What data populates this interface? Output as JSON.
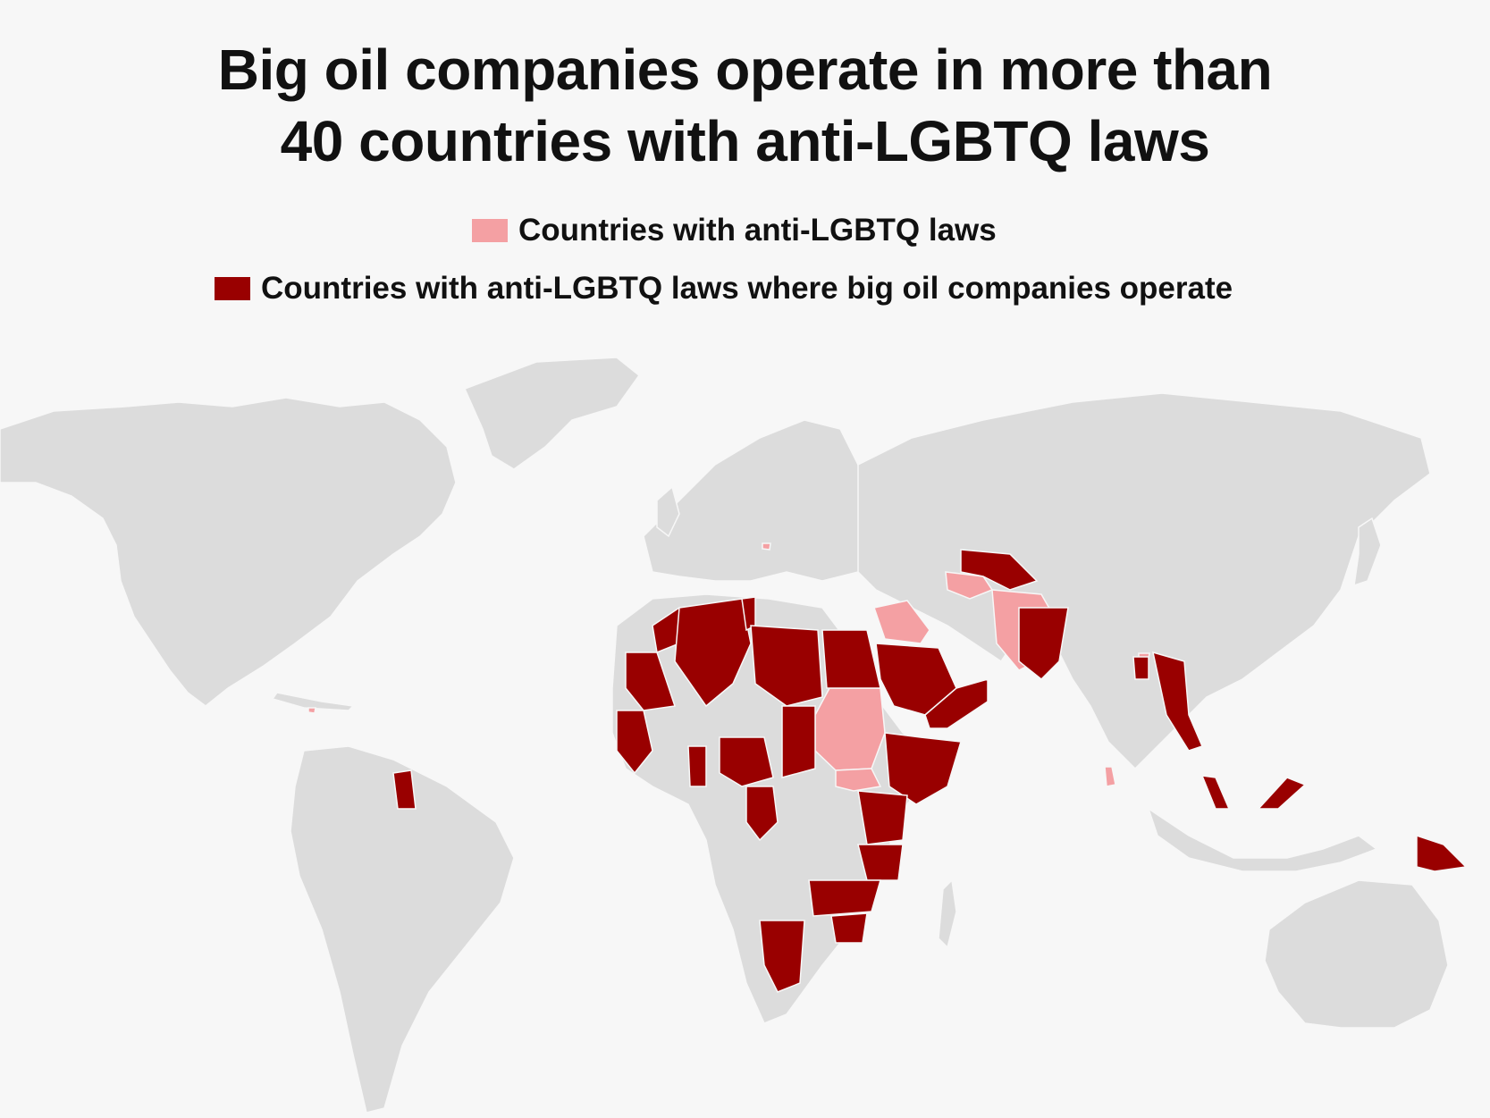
{
  "title": {
    "line1": "Big oil companies operate in more than",
    "line2": "40 countries with anti-LGBTQ laws"
  },
  "legend": {
    "items": [
      {
        "label": "Countries with anti-LGBTQ laws",
        "color": "#f4a0a3"
      },
      {
        "label": "Countries with anti-LGBTQ laws where big oil companies operate",
        "color": "#990000"
      }
    ]
  },
  "colors": {
    "background": "#f7f7f7",
    "land": "#dcdcdc",
    "anti_lgbtq": "#f4a0a3",
    "anti_lgbtq_big_oil": "#990000"
  }
}
